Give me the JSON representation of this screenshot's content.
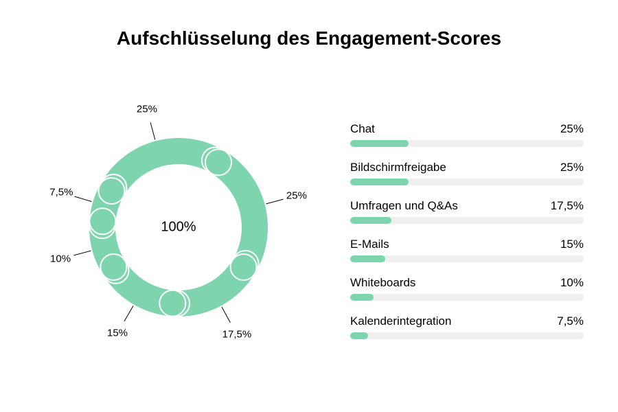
{
  "title": "Aufschlüsselung des Engagement-Scores",
  "chart": {
    "type": "donut",
    "center_label": "100%",
    "center_fontsize": 20,
    "title_fontsize": 28,
    "segment_color": "#7ed4ae",
    "gap_color": "#ffffff",
    "track_color": "#efefef",
    "background_color": "#ffffff",
    "label_color": "#000000",
    "label_fontsize": 15,
    "legend_fontsize": 17,
    "outer_radius": 130,
    "inner_radius": 92,
    "gap_degrees": 3,
    "segments": [
      {
        "label": "Chat",
        "value": 25,
        "display": "25%"
      },
      {
        "label": "Bildschirmfreigabe",
        "value": 25,
        "display": "25%"
      },
      {
        "label": "Umfragen und Q&As",
        "value": 17.5,
        "display": "17,5%"
      },
      {
        "label": "E-Mails",
        "value": 15,
        "display": "15%"
      },
      {
        "label": "Whiteboards",
        "value": 10,
        "display": "10%"
      },
      {
        "label": "Kalenderintegration",
        "value": 7.5,
        "display": "7,5%"
      }
    ],
    "start_angle_deg": -60
  }
}
